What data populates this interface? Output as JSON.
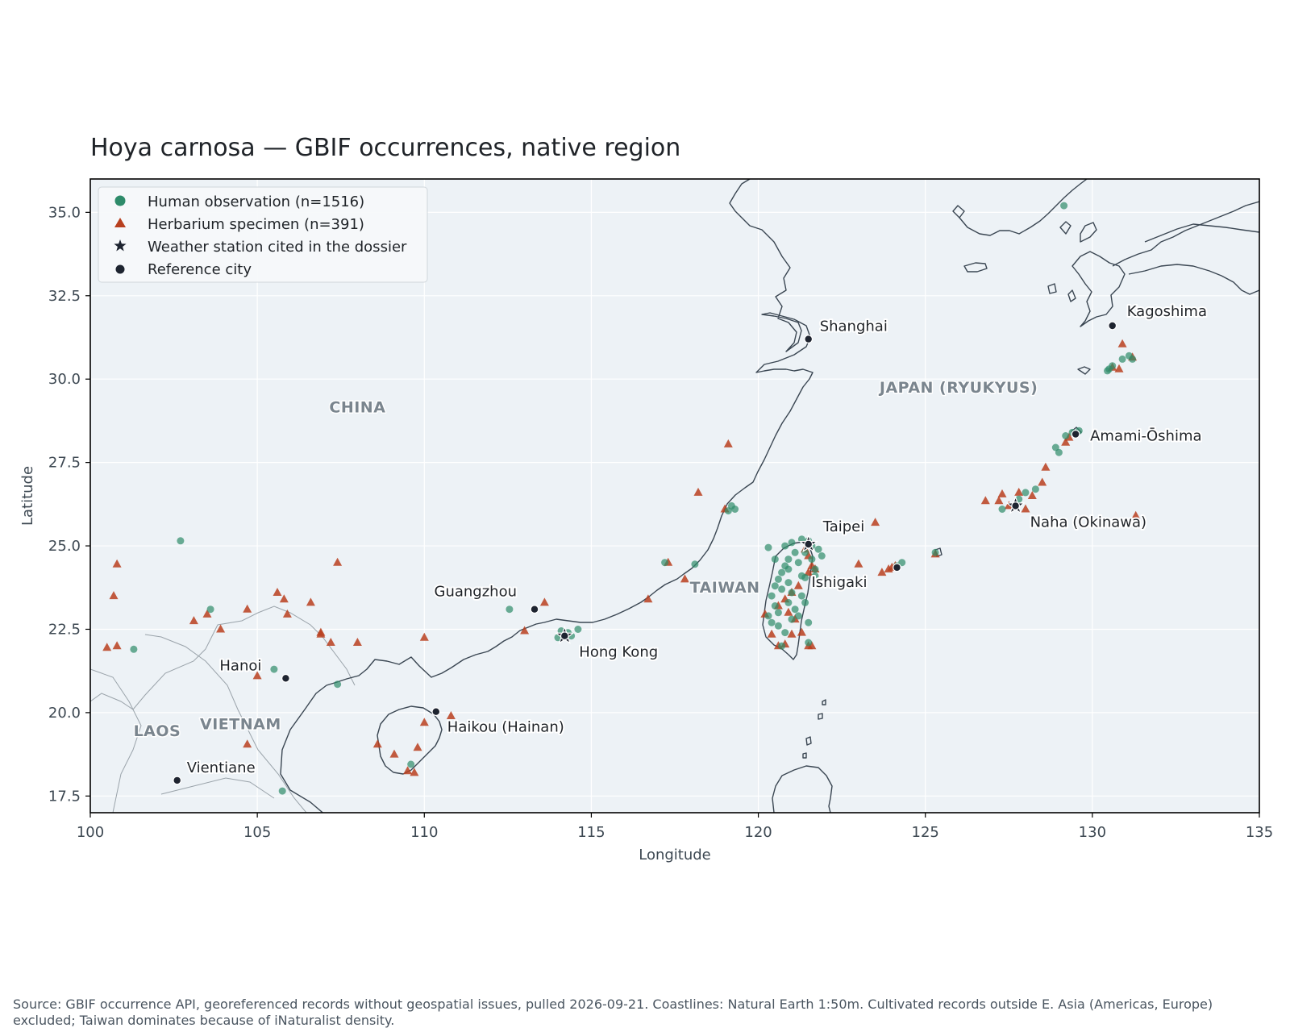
{
  "figure": {
    "title": "Hoya carnosa — GBIF occurrences, native region",
    "source_note": "Source: GBIF occurrence API, georeferenced records without geospatial issues, pulled 2026-09-21. Coastlines: Natural Earth 1:50m. Cultivated records outside E. Asia (Americas, Europe) excluded; Taiwan dominates because of iNaturalist density."
  },
  "colors": {
    "background": "#edf2f6",
    "gridline": "#ffffff",
    "human_observation": "#2e8b6a",
    "herbarium": "#b8401f",
    "station": "#1e2430",
    "city": "#1e2430"
  },
  "chart_data": {
    "type": "scatter",
    "xlabel": "Longitude",
    "ylabel": "Latitude",
    "xlim": [
      100,
      135
    ],
    "ylim": [
      17,
      36
    ],
    "xticks": [
      "100",
      "105",
      "110",
      "115",
      "120",
      "125",
      "130",
      "135"
    ],
    "yticks": [
      "17.5",
      "20.0",
      "22.5",
      "25.0",
      "27.5",
      "30.0",
      "32.5",
      "35.0"
    ],
    "grid": true,
    "legend_position": "upper-left",
    "legend": [
      {
        "label": "Human observation (n=1516)",
        "marker": "circle",
        "color": "#2e8b6a"
      },
      {
        "label": "Herbarium specimen (n=391)",
        "marker": "triangle",
        "color": "#b8401f"
      },
      {
        "label": "Weather station cited in the dossier",
        "marker": "star",
        "color": "#1e2430"
      },
      {
        "label": "Reference city",
        "marker": "dot",
        "color": "#1e2430"
      }
    ],
    "region_labels": [
      {
        "name": "CHINA",
        "lon": 108.0,
        "lat": 29.0
      },
      {
        "name": "JAPAN (RYUKYUS)",
        "lon": 126.0,
        "lat": 29.6
      },
      {
        "name": "TAIWAN",
        "lon": 119.0,
        "lat": 23.6
      },
      {
        "name": "VIETNAM",
        "lon": 104.5,
        "lat": 19.5
      },
      {
        "name": "LAOS",
        "lon": 102.0,
        "lat": 19.3
      }
    ],
    "cities": [
      {
        "name": "Shanghai",
        "lon": 121.5,
        "lat": 31.2
      },
      {
        "name": "Kagoshima",
        "lon": 130.6,
        "lat": 31.6
      },
      {
        "name": "Amami-Ōshima",
        "lon": 129.5,
        "lat": 28.35
      },
      {
        "name": "Taipei",
        "lon": 121.5,
        "lat": 25.05
      },
      {
        "name": "Naha (Okinawa)",
        "lon": 127.7,
        "lat": 26.2
      },
      {
        "name": "Ishigaki",
        "lon": 124.15,
        "lat": 24.35
      },
      {
        "name": "Guangzhou",
        "lon": 113.3,
        "lat": 23.1
      },
      {
        "name": "Hong Kong",
        "lon": 114.2,
        "lat": 22.3
      },
      {
        "name": "Hanoi",
        "lon": 105.85,
        "lat": 21.03
      },
      {
        "name": "Haikou (Hainan)",
        "lon": 110.35,
        "lat": 20.03
      },
      {
        "name": "Vientiane",
        "lon": 102.6,
        "lat": 17.97
      }
    ],
    "stations": [
      {
        "name": "Hong Kong",
        "lon": 114.2,
        "lat": 22.3
      },
      {
        "name": "Taipei",
        "lon": 121.5,
        "lat": 25.05
      },
      {
        "name": "Naha (Okinawa)",
        "lon": 127.7,
        "lat": 26.2
      }
    ],
    "human_observation": [
      [
        102.7,
        25.15
      ],
      [
        101.3,
        21.9
      ],
      [
        103.6,
        23.1
      ],
      [
        105.5,
        21.3
      ],
      [
        107.4,
        20.85
      ],
      [
        105.75,
        17.65
      ],
      [
        109.6,
        18.45
      ],
      [
        112.55,
        23.1
      ],
      [
        114.1,
        22.45
      ],
      [
        114.3,
        22.4
      ],
      [
        114.4,
        22.3
      ],
      [
        114.0,
        22.25
      ],
      [
        114.6,
        22.5
      ],
      [
        117.2,
        24.5
      ],
      [
        118.1,
        24.45
      ],
      [
        119.2,
        26.2
      ],
      [
        119.3,
        26.1
      ],
      [
        119.1,
        26.05
      ],
      [
        121.0,
        25.1
      ],
      [
        121.3,
        25.2
      ],
      [
        121.5,
        25.15
      ],
      [
        121.6,
        25.0
      ],
      [
        121.8,
        24.9
      ],
      [
        121.4,
        24.8
      ],
      [
        121.1,
        24.8
      ],
      [
        120.9,
        24.6
      ],
      [
        120.8,
        24.4
      ],
      [
        120.7,
        24.2
      ],
      [
        120.9,
        24.3
      ],
      [
        121.2,
        24.5
      ],
      [
        121.6,
        24.6
      ],
      [
        121.7,
        24.3
      ],
      [
        120.6,
        24.0
      ],
      [
        120.5,
        23.8
      ],
      [
        120.7,
        23.7
      ],
      [
        120.9,
        23.9
      ],
      [
        121.0,
        23.6
      ],
      [
        121.3,
        23.5
      ],
      [
        121.4,
        23.3
      ],
      [
        120.4,
        23.5
      ],
      [
        120.5,
        23.2
      ],
      [
        120.6,
        23.0
      ],
      [
        120.3,
        22.9
      ],
      [
        120.4,
        22.7
      ],
      [
        120.6,
        22.6
      ],
      [
        120.8,
        22.4
      ],
      [
        121.0,
        22.8
      ],
      [
        121.2,
        22.9
      ],
      [
        121.1,
        23.1
      ],
      [
        120.9,
        23.3
      ],
      [
        121.5,
        22.7
      ],
      [
        121.5,
        22.1
      ],
      [
        120.7,
        22.0
      ],
      [
        120.3,
        24.95
      ],
      [
        121.9,
        24.7
      ],
      [
        121.7,
        24.1
      ],
      [
        121.4,
        24.05
      ],
      [
        120.5,
        24.6
      ],
      [
        120.8,
        25.0
      ],
      [
        121.3,
        24.1
      ],
      [
        124.15,
        24.4
      ],
      [
        124.3,
        24.5
      ],
      [
        125.3,
        24.8
      ],
      [
        127.3,
        26.1
      ],
      [
        127.8,
        26.4
      ],
      [
        128.0,
        26.6
      ],
      [
        128.3,
        26.7
      ],
      [
        128.9,
        27.95
      ],
      [
        129.0,
        27.8
      ],
      [
        129.2,
        28.3
      ],
      [
        129.4,
        28.4
      ],
      [
        129.6,
        28.45
      ],
      [
        130.5,
        30.3
      ],
      [
        130.6,
        30.4
      ],
      [
        130.9,
        30.6
      ],
      [
        131.1,
        30.7
      ],
      [
        131.2,
        30.6
      ],
      [
        130.45,
        30.25
      ],
      [
        129.15,
        35.2
      ]
    ],
    "herbarium_specimen": [
      [
        100.5,
        21.95
      ],
      [
        100.8,
        22.0
      ],
      [
        100.7,
        23.5
      ],
      [
        100.8,
        24.45
      ],
      [
        103.1,
        22.75
      ],
      [
        103.5,
        22.95
      ],
      [
        103.9,
        22.5
      ],
      [
        104.7,
        23.1
      ],
      [
        105.0,
        21.1
      ],
      [
        104.7,
        19.05
      ],
      [
        105.6,
        23.6
      ],
      [
        105.8,
        23.4
      ],
      [
        105.9,
        22.95
      ],
      [
        106.6,
        23.3
      ],
      [
        106.9,
        22.4
      ],
      [
        106.9,
        22.35
      ],
      [
        107.2,
        22.1
      ],
      [
        107.4,
        24.5
      ],
      [
        108.0,
        22.1
      ],
      [
        108.6,
        19.05
      ],
      [
        109.1,
        18.75
      ],
      [
        109.5,
        18.25
      ],
      [
        109.7,
        18.2
      ],
      [
        109.8,
        18.95
      ],
      [
        110.0,
        19.7
      ],
      [
        110.0,
        22.25
      ],
      [
        110.8,
        19.9
      ],
      [
        113.0,
        22.45
      ],
      [
        113.6,
        23.3
      ],
      [
        116.7,
        23.4
      ],
      [
        117.3,
        24.5
      ],
      [
        117.8,
        24.0
      ],
      [
        118.2,
        26.6
      ],
      [
        119.1,
        28.05
      ],
      [
        119.0,
        26.1
      ],
      [
        120.2,
        22.95
      ],
      [
        120.4,
        22.35
      ],
      [
        120.6,
        22.0
      ],
      [
        120.8,
        22.05
      ],
      [
        121.0,
        22.35
      ],
      [
        121.5,
        22.0
      ],
      [
        121.6,
        22.0
      ],
      [
        120.6,
        23.2
      ],
      [
        120.8,
        23.4
      ],
      [
        121.0,
        23.6
      ],
      [
        121.2,
        23.8
      ],
      [
        121.5,
        24.2
      ],
      [
        121.6,
        24.4
      ],
      [
        121.7,
        24.3
      ],
      [
        121.4,
        24.9
      ],
      [
        121.5,
        24.7
      ],
      [
        121.1,
        22.8
      ],
      [
        120.9,
        23.0
      ],
      [
        121.3,
        22.4
      ],
      [
        123.0,
        24.45
      ],
      [
        123.5,
        25.7
      ],
      [
        123.7,
        24.2
      ],
      [
        123.9,
        24.3
      ],
      [
        124.0,
        24.35
      ],
      [
        124.1,
        24.4
      ],
      [
        125.3,
        24.75
      ],
      [
        126.8,
        26.35
      ],
      [
        127.2,
        26.35
      ],
      [
        127.3,
        26.55
      ],
      [
        127.5,
        26.2
      ],
      [
        127.8,
        26.6
      ],
      [
        128.0,
        26.1
      ],
      [
        128.2,
        26.5
      ],
      [
        128.6,
        27.35
      ],
      [
        128.5,
        26.9
      ],
      [
        129.2,
        28.1
      ],
      [
        129.3,
        28.25
      ],
      [
        131.3,
        25.9
      ],
      [
        130.6,
        30.35
      ],
      [
        130.8,
        30.3
      ],
      [
        130.9,
        31.05
      ],
      [
        131.2,
        30.65
      ]
    ]
  }
}
